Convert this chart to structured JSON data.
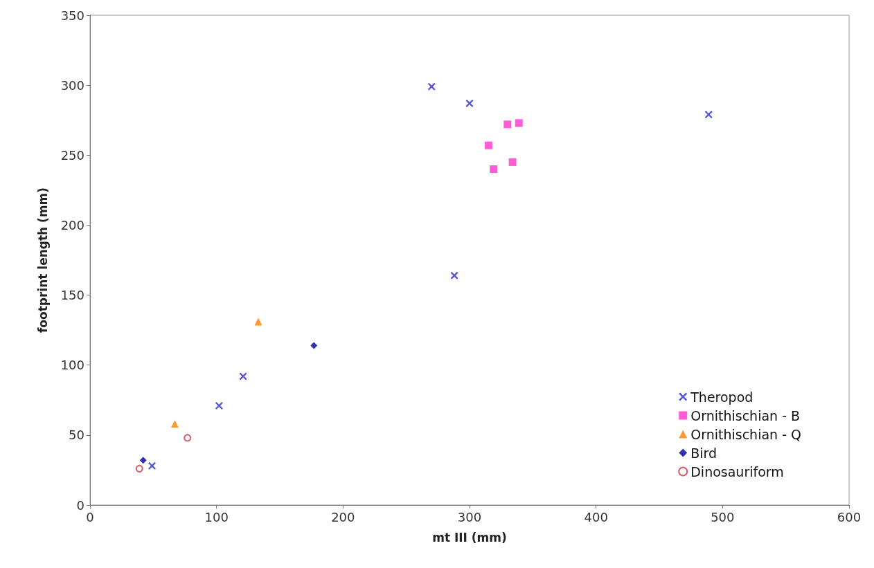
{
  "chart_data": {
    "type": "scatter",
    "xlabel": "mt III (mm)",
    "ylabel": "footprint length (mm)",
    "xlim": [
      0,
      600
    ],
    "xticks": [
      0,
      100,
      200,
      300,
      400,
      500,
      600
    ],
    "ylim": [
      0,
      350
    ],
    "yticks": [
      0,
      50,
      100,
      150,
      200,
      250,
      300,
      350
    ],
    "grid": false,
    "legend": "bottom right",
    "series": [
      {
        "name": "Theropod",
        "color": "#2b2bd6",
        "marker": "cross",
        "x": [
          270,
          300,
          489,
          288,
          121,
          102,
          49
        ],
        "values": [
          299,
          287,
          279,
          164,
          92,
          71,
          28
        ]
      },
      {
        "name": "Ornithischian - B",
        "color": "#ff33cc",
        "marker": "square",
        "x": [
          330,
          339,
          315,
          334,
          319
        ],
        "values": [
          272,
          273,
          257,
          245,
          240
        ]
      },
      {
        "name": "Ornithischian - Q",
        "color": "#ff8000",
        "marker": "triangle",
        "x": [
          133,
          67
        ],
        "values": [
          131,
          58
        ]
      },
      {
        "name": "Bird",
        "color": "#000099",
        "marker": "diamond",
        "x": [
          177,
          42
        ],
        "values": [
          114,
          32
        ]
      },
      {
        "name": "Dinosauriform",
        "color": "#cc3344",
        "marker": "circle",
        "x": [
          77,
          39
        ],
        "values": [
          48,
          26
        ]
      }
    ]
  }
}
